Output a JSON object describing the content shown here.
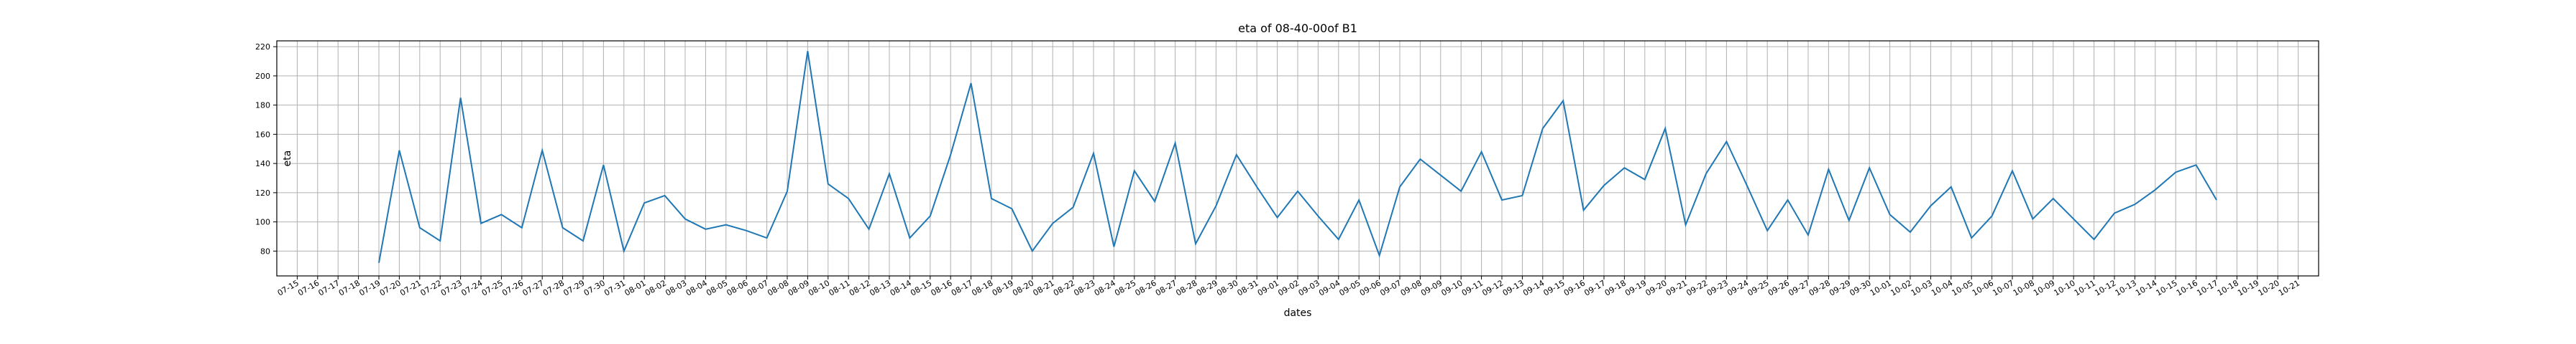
{
  "chart_data": {
    "type": "line",
    "title": "eta of 08-40-00of B1",
    "xlabel": "dates",
    "ylabel": "eta",
    "x_ticks": [
      "07-15",
      "07-16",
      "07-17",
      "07-18",
      "07-19",
      "07-20",
      "07-21",
      "07-22",
      "07-23",
      "07-24",
      "07-25",
      "07-26",
      "07-27",
      "07-28",
      "07-29",
      "07-30",
      "07-31",
      "08-01",
      "08-02",
      "08-03",
      "08-04",
      "08-05",
      "08-06",
      "08-07",
      "08-08",
      "08-09",
      "08-10",
      "08-11",
      "08-12",
      "08-13",
      "08-14",
      "08-15",
      "08-16",
      "08-17",
      "08-18",
      "08-19",
      "08-20",
      "08-21",
      "08-22",
      "08-23",
      "08-24",
      "08-25",
      "08-26",
      "08-27",
      "08-28",
      "08-29",
      "08-30",
      "08-31",
      "09-01",
      "09-02",
      "09-03",
      "09-04",
      "09-05",
      "09-06",
      "09-07",
      "09-08",
      "09-09",
      "09-10",
      "09-11",
      "09-12",
      "09-13",
      "09-14",
      "09-15",
      "09-16",
      "09-17",
      "09-18",
      "09-19",
      "09-20",
      "09-21",
      "09-22",
      "09-23",
      "09-24",
      "09-25",
      "09-26",
      "09-27",
      "09-28",
      "09-29",
      "09-30",
      "10-01",
      "10-02",
      "10-03",
      "10-04",
      "10-05",
      "10-06",
      "10-07",
      "10-08",
      "10-09",
      "10-10",
      "10-11",
      "10-12",
      "10-13",
      "10-14",
      "10-15",
      "10-16",
      "10-17",
      "10-18",
      "10-19",
      "10-20",
      "10-21"
    ],
    "xlim": [
      "07-14",
      "10-22"
    ],
    "ylim": [
      63,
      224
    ],
    "y_ticks": [
      80,
      100,
      120,
      140,
      160,
      180,
      200,
      220
    ],
    "grid": true,
    "series": [
      {
        "color": "#1f77b4",
        "x": [
          "07-19",
          "07-20",
          "07-21",
          "07-22",
          "07-23",
          "07-24",
          "07-25",
          "07-26",
          "07-27",
          "07-28",
          "07-29",
          "07-30",
          "07-31",
          "08-01",
          "08-02",
          "08-03",
          "08-04",
          "08-05",
          "08-06",
          "08-07",
          "08-08",
          "08-09",
          "08-10",
          "08-11",
          "08-12",
          "08-13",
          "08-14",
          "08-15",
          "08-16",
          "08-17",
          "08-18",
          "08-19",
          "08-20",
          "08-21",
          "08-22",
          "08-23",
          "08-24",
          "08-25",
          "08-26",
          "08-27",
          "08-28",
          "08-29",
          "08-30",
          "08-31",
          "09-01",
          "09-02",
          "09-03",
          "09-04",
          "09-05",
          "09-06",
          "09-07",
          "09-08",
          "09-09",
          "09-10",
          "09-11",
          "09-12",
          "09-13",
          "09-14",
          "09-15",
          "09-16",
          "09-17",
          "09-18",
          "09-19",
          "09-20",
          "09-21",
          "09-22",
          "09-23",
          "09-24",
          "09-25",
          "09-26",
          "09-27",
          "09-28",
          "09-29",
          "09-30",
          "10-01",
          "10-02",
          "10-03",
          "10-04",
          "10-05",
          "10-06",
          "10-07",
          "10-08",
          "10-09",
          "10-10",
          "10-11",
          "10-12",
          "10-13",
          "10-14",
          "10-15",
          "10-16",
          "10-17"
        ],
        "y": [
          72,
          149,
          96,
          87,
          185,
          99,
          105,
          96,
          149,
          96,
          87,
          139,
          80,
          113,
          118,
          102,
          95,
          98,
          94,
          89,
          121,
          217,
          126,
          116,
          95,
          133,
          89,
          104,
          146,
          195,
          116,
          109,
          80,
          99,
          110,
          147,
          83,
          135,
          114,
          154,
          85,
          111,
          146,
          124,
          103,
          121,
          104,
          88,
          115,
          77,
          124,
          143,
          132,
          121,
          148,
          115,
          118,
          164,
          183,
          108,
          125,
          137,
          129,
          164,
          98,
          133,
          155,
          125,
          94,
          115,
          91,
          136,
          101,
          137,
          105,
          93,
          111,
          124,
          89,
          104,
          135,
          102,
          116,
          102,
          88,
          106,
          112,
          122,
          134,
          139,
          115
        ]
      }
    ]
  }
}
